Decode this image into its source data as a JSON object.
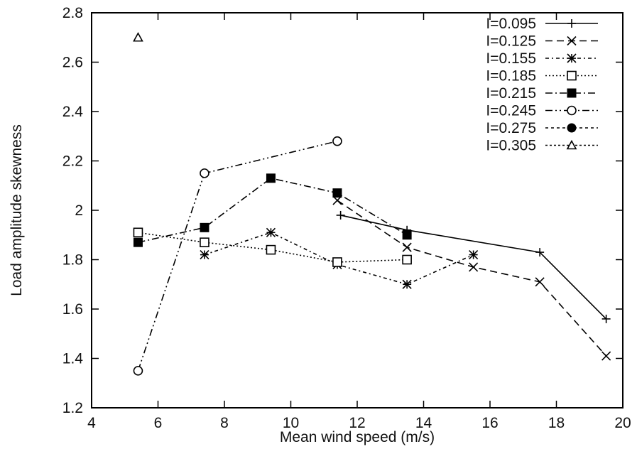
{
  "chart_data": {
    "type": "line",
    "xlabel": "Mean wind speed (m/s)",
    "ylabel": "Load amplitude skewness",
    "xlim": [
      4,
      20
    ],
    "ylim": [
      1.2,
      2.8
    ],
    "xticks": [
      4,
      6,
      8,
      10,
      12,
      14,
      16,
      18,
      20
    ],
    "yticks": [
      1.2,
      1.4,
      1.6,
      1.8,
      2,
      2.2,
      2.4,
      2.6,
      2.8
    ],
    "xtick_labels": [
      "4",
      "6",
      "8",
      "10",
      "12",
      "14",
      "16",
      "18",
      "20"
    ],
    "ytick_labels": [
      "1.2",
      "1.4",
      "1.6",
      "1.8",
      "2",
      "2.2",
      "2.4",
      "2.6",
      "2.8"
    ],
    "grid": false,
    "legend_position": "top-right",
    "series": [
      {
        "name": "I=0.095",
        "marker": "plus",
        "dash": "solid",
        "x": [
          11.5,
          13.5,
          17.5,
          19.5
        ],
        "y": [
          1.98,
          1.92,
          1.83,
          1.56
        ]
      },
      {
        "name": "I=0.125",
        "marker": "cross",
        "dash": "dashed",
        "x": [
          11.4,
          13.5,
          15.5,
          17.5,
          19.5
        ],
        "y": [
          2.04,
          1.85,
          1.77,
          1.71,
          1.41
        ]
      },
      {
        "name": "I=0.155",
        "marker": "star",
        "dash": "dotted-dashed",
        "x": [
          7.4,
          9.4,
          11.4,
          13.5,
          15.5
        ],
        "y": [
          1.82,
          1.91,
          1.78,
          1.7,
          1.82
        ]
      },
      {
        "name": "I=0.185",
        "marker": "square-open",
        "dash": "dotted",
        "x": [
          5.4,
          7.4,
          9.4,
          11.4,
          13.5
        ],
        "y": [
          1.91,
          1.87,
          1.84,
          1.79,
          1.8
        ]
      },
      {
        "name": "I=0.215",
        "marker": "square-filled",
        "dash": "dash-dot",
        "x": [
          5.4,
          7.4,
          9.4,
          11.4,
          13.5
        ],
        "y": [
          1.87,
          1.93,
          2.13,
          2.07,
          1.9
        ]
      },
      {
        "name": "I=0.245",
        "marker": "circle-open",
        "dash": "dash-dot-dot",
        "x": [
          5.4,
          7.4,
          11.4
        ],
        "y": [
          1.35,
          2.15,
          2.28
        ]
      },
      {
        "name": "I=0.275",
        "marker": "circle-filled",
        "dash": "short-dash",
        "x": [],
        "y": []
      },
      {
        "name": "I=0.305",
        "marker": "triangle-open",
        "dash": "fine-dash",
        "x": [
          5.4
        ],
        "y": [
          2.7
        ]
      }
    ]
  }
}
